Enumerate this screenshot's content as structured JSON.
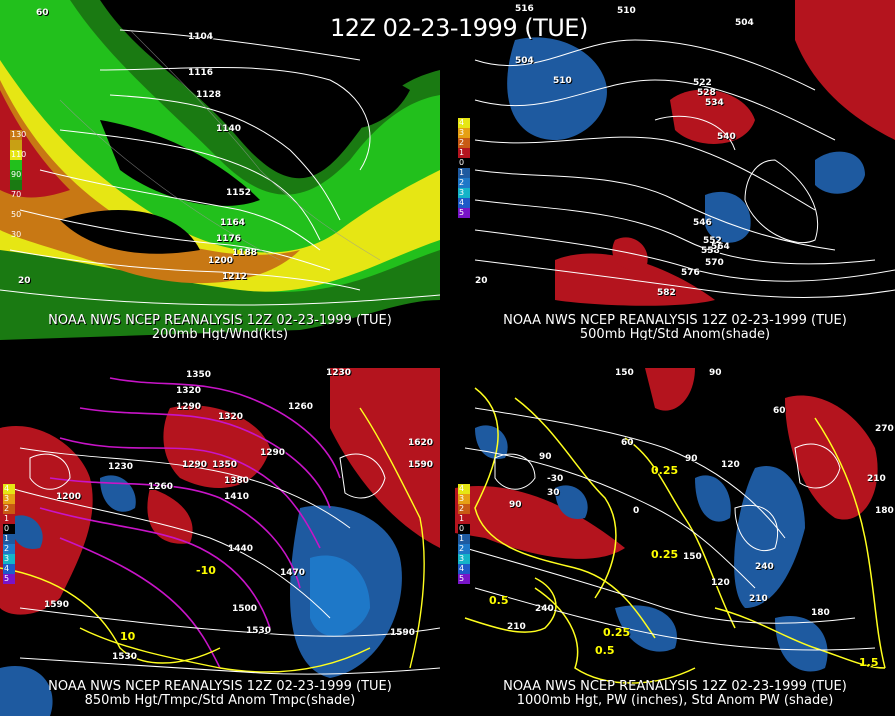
{
  "title": "12Z 02-23-1999 (TUE)",
  "panels": [
    {
      "id": "p200",
      "caption1": "NOAA NWS NCEP REANALYSIS 12Z 02-23-1999 (TUE)",
      "caption2": "200mb Hgt/Wnd(kts)",
      "legend": [
        "130",
        "110",
        "90",
        "70",
        "50",
        "30"
      ],
      "labels": [
        "1104",
        "1116",
        "1128",
        "1140",
        "1152",
        "1164",
        "1176",
        "1188",
        "1200",
        "1212",
        "60",
        "20"
      ]
    },
    {
      "id": "p500",
      "caption1": "NOAA NWS NCEP REANALYSIS 12Z 02-23-1999 (TUE)",
      "caption2": "500mb Hgt/Std Anom(shade)",
      "legend": [
        "4",
        "3",
        "2",
        "1",
        "0",
        "1",
        "2",
        "3",
        "4",
        "5"
      ],
      "labels": [
        "516",
        "510",
        "504",
        "510",
        "504",
        "522",
        "528",
        "534",
        "540",
        "546",
        "552",
        "558",
        "564",
        "570",
        "576",
        "582",
        "20"
      ]
    },
    {
      "id": "p850",
      "caption1": "NOAA NWS NCEP REANALYSIS 12Z 02-23-1999 (TUE)",
      "caption2": "850mb Hgt/Tmpc/Std Anom Tmpc(shade)",
      "legend": [
        "4",
        "3",
        "2",
        "1",
        "0",
        "1",
        "2",
        "3",
        "4",
        "5"
      ],
      "labels": [
        "1350",
        "1320",
        "1230",
        "1320",
        "1290",
        "1260",
        "1290",
        "1230",
        "1200",
        "1260",
        "1290",
        "1350",
        "1380",
        "1410",
        "1440",
        "1470",
        "1500",
        "1530",
        "1530",
        "1590",
        "1620",
        "1590",
        "1590",
        "-10",
        "10"
      ]
    },
    {
      "id": "p1000",
      "caption1": "NOAA NWS NCEP REANALYSIS 12Z 02-23-1999 (TUE)",
      "caption2": "1000mb Hgt, PW (inches), Std Anom PW (shade)",
      "legend": [
        "4",
        "3",
        "2",
        "1",
        "0",
        "1",
        "2",
        "3",
        "4",
        "5"
      ],
      "labels": [
        "150",
        "90",
        "60",
        "90",
        "30",
        "-30",
        "0",
        "90",
        "150",
        "120",
        "210",
        "240",
        "210",
        "180",
        "0.25",
        "0.25",
        "0.5",
        "0.5",
        "0.25",
        "1.5",
        "120",
        "270",
        "180",
        "240",
        "210",
        "90",
        "60"
      ]
    }
  ],
  "colors": {
    "wind_low": "#2a9a1a",
    "wind_mid": "#1ec81e",
    "wind_hi": "#e6e614",
    "wind_max": "#c87814",
    "warm": "#b4141e",
    "cold": "#1e5aa0",
    "contour": "#ffffff",
    "temp": "#c814c8",
    "pw": "#ffff1e"
  }
}
